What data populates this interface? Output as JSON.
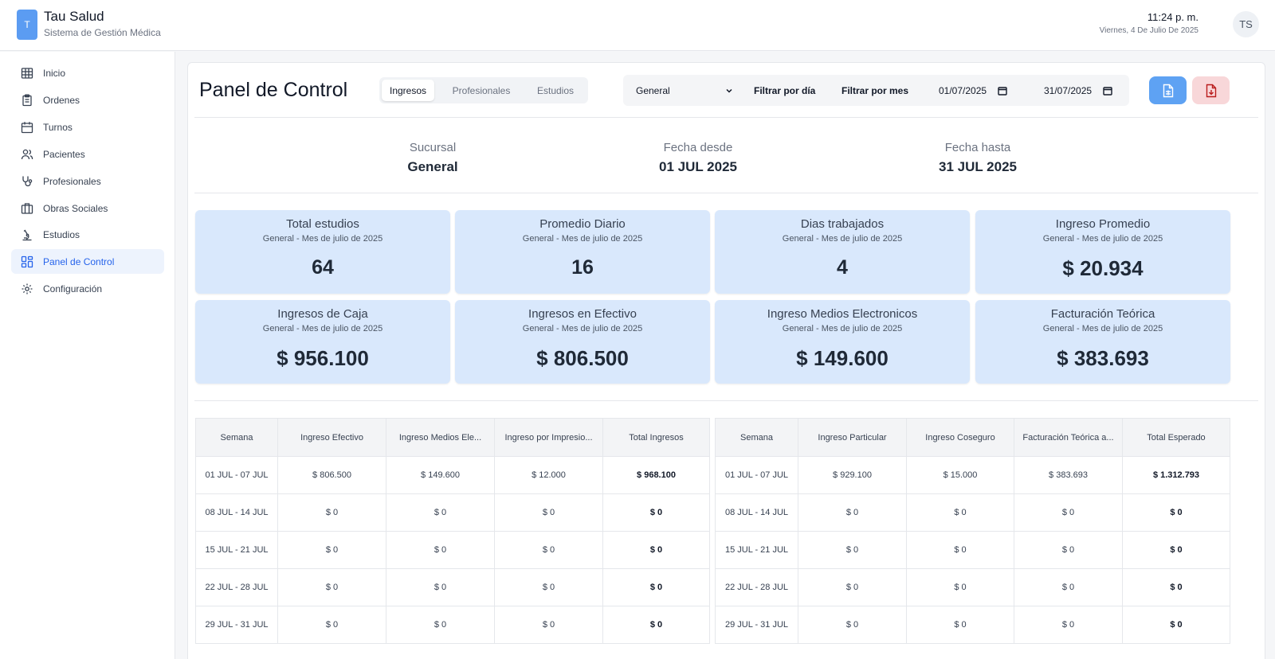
{
  "header": {
    "logo_letter": "T",
    "title": "Tau Salud",
    "subtitle": "Sistema de Gestión Médica",
    "time": "11:24 p. m.",
    "date": "Viernes, 4 De Julio De 2025",
    "avatar_initials": "TS"
  },
  "sidebar": {
    "items": [
      {
        "label": "Inicio",
        "icon": "grid-icon"
      },
      {
        "label": "Ordenes",
        "icon": "clipboard-icon"
      },
      {
        "label": "Turnos",
        "icon": "calendar-icon"
      },
      {
        "label": "Pacientes",
        "icon": "users-icon"
      },
      {
        "label": "Profesionales",
        "icon": "stethoscope-icon"
      },
      {
        "label": "Obras Sociales",
        "icon": "building-icon"
      },
      {
        "label": "Estudios",
        "icon": "microscope-icon"
      },
      {
        "label": "Panel de Control",
        "icon": "dashboard-icon",
        "active": true
      },
      {
        "label": "Configuración",
        "icon": "gear-icon"
      }
    ]
  },
  "main": {
    "title": "Panel de Control",
    "tabs": [
      {
        "label": "Ingresos",
        "active": true
      },
      {
        "label": "Profesionales"
      },
      {
        "label": "Estudios"
      }
    ],
    "filters": {
      "branch": "General",
      "by_day": "Filtrar por día",
      "by_month": "Filtrar por mes",
      "date_from": "01/07/2025",
      "date_to": "31/07/2025"
    },
    "summary": {
      "branch_label": "Sucursal",
      "branch_value": "General",
      "from_label": "Fecha desde",
      "from_value": "01 JUL 2025",
      "to_label": "Fecha hasta",
      "to_value": "31 JUL 2025"
    },
    "stats": [
      {
        "title": "Total estudios",
        "sub": "General - Mes de julio de 2025",
        "value": "64"
      },
      {
        "title": "Promedio Diario",
        "sub": "General - Mes de julio de 2025",
        "value": "16"
      },
      {
        "title": "Dias trabajados",
        "sub": "General - Mes de julio de 2025",
        "value": "4"
      },
      {
        "title": "Ingreso Promedio",
        "sub": "General - Mes de julio de 2025",
        "value": "$ 20.934"
      },
      {
        "title": "Ingresos de Caja",
        "sub": "General - Mes de julio de 2025",
        "value": "$ 956.100"
      },
      {
        "title": "Ingresos en Efectivo",
        "sub": "General - Mes de julio de 2025",
        "value": "$ 806.500"
      },
      {
        "title": "Ingreso Medios Electronicos",
        "sub": "General - Mes de julio de 2025",
        "value": "$ 149.600"
      },
      {
        "title": "Facturación Teórica",
        "sub": "General - Mes de julio de 2025",
        "value": "$ 383.693"
      }
    ],
    "table_left": {
      "headers": [
        "Semana",
        "Ingreso Efectivo",
        "Ingreso Medios Ele...",
        "Ingreso por Impresio...",
        "Total Ingresos"
      ],
      "rows": [
        [
          "01 JUL - 07 JUL",
          "$ 806.500",
          "$ 149.600",
          "$ 12.000",
          "$ 968.100"
        ],
        [
          "08 JUL - 14 JUL",
          "$ 0",
          "$ 0",
          "$ 0",
          "$ 0"
        ],
        [
          "15 JUL - 21 JUL",
          "$ 0",
          "$ 0",
          "$ 0",
          "$ 0"
        ],
        [
          "22 JUL - 28 JUL",
          "$ 0",
          "$ 0",
          "$ 0",
          "$ 0"
        ],
        [
          "29 JUL - 31 JUL",
          "$ 0",
          "$ 0",
          "$ 0",
          "$ 0"
        ]
      ]
    },
    "table_right": {
      "headers": [
        "Semana",
        "Ingreso Particular",
        "Ingreso Coseguro",
        "Facturación Teórica a...",
        "Total Esperado"
      ],
      "rows": [
        [
          "01 JUL - 07 JUL",
          "$ 929.100",
          "$ 15.000",
          "$ 383.693",
          "$ 1.312.793"
        ],
        [
          "08 JUL - 14 JUL",
          "$ 0",
          "$ 0",
          "$ 0",
          "$ 0"
        ],
        [
          "15 JUL - 21 JUL",
          "$ 0",
          "$ 0",
          "$ 0",
          "$ 0"
        ],
        [
          "22 JUL - 28 JUL",
          "$ 0",
          "$ 0",
          "$ 0",
          "$ 0"
        ],
        [
          "29 JUL - 31 JUL",
          "$ 0",
          "$ 0",
          "$ 0",
          "$ 0"
        ]
      ]
    }
  },
  "colors": {
    "accent": "#2563eb",
    "stat_bg": "#d9e8fc",
    "export_button": "#5ea2f3",
    "pdf_button": "#f8d7d9"
  }
}
